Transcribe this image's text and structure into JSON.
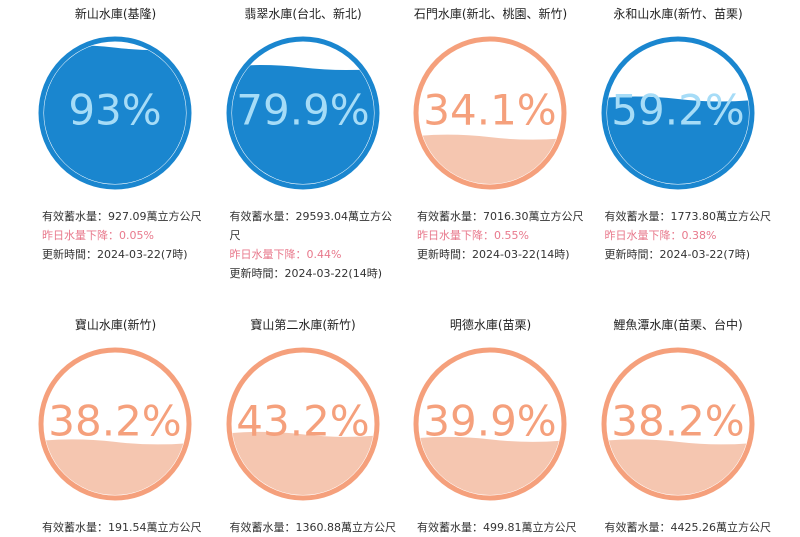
{
  "reservoirs": [
    {
      "name": "新山水庫(基隆)",
      "percent": 93,
      "percent_label": "93%",
      "color": "#1a86cf",
      "fill_color": "#1a86cf",
      "text_color": "#a6dcf7",
      "storage": "有效蓄水量：927.09萬立方公尺",
      "change": "昨日水量下降：0.05%",
      "updated": "更新時間：2024-03-22(7時)"
    },
    {
      "name": "翡翠水庫(台北、新北)",
      "percent": 79.9,
      "percent_label": "79.9%",
      "color": "#1a86cf",
      "fill_color": "#1a86cf",
      "text_color": "#a6dcf7",
      "storage": "有效蓄水量：29593.04萬立方公尺",
      "change": "昨日水量下降：0.44%",
      "updated": "更新時間：2024-03-22(14時)"
    },
    {
      "name": "石門水庫(新北、桃園、新竹)",
      "percent": 34.1,
      "percent_label": "34.1%",
      "color": "#f5a07c",
      "fill_color": "#f5c6b0",
      "text_color": "#f5a07c",
      "storage": "有效蓄水量：7016.30萬立方公尺",
      "change": "昨日水量下降：0.55%",
      "updated": "更新時間：2024-03-22(14時)"
    },
    {
      "name": "永和山水庫(新竹、苗栗)",
      "percent": 59.2,
      "percent_label": "59.2%",
      "color": "#1a86cf",
      "fill_color": "#1a86cf",
      "text_color": "#a6dcf7",
      "storage": "有效蓄水量：1773.80萬立方公尺",
      "change": "昨日水量下降：0.38%",
      "updated": "更新時間：2024-03-22(7時)"
    },
    {
      "name": "寶山水庫(新竹)",
      "percent": 38.2,
      "percent_label": "38.2%",
      "color": "#f5a07c",
      "fill_color": "#f5c6b0",
      "text_color": "#f5a07c",
      "storage": "有效蓄水量：191.54萬立方公尺"
    },
    {
      "name": "寶山第二水庫(新竹)",
      "percent": 43.2,
      "percent_label": "43.2%",
      "color": "#f5a07c",
      "fill_color": "#f5c6b0",
      "text_color": "#f5a07c",
      "storage": "有效蓄水量：1360.88萬立方公尺"
    },
    {
      "name": "明德水庫(苗栗)",
      "percent": 39.9,
      "percent_label": "39.9%",
      "color": "#f5a07c",
      "fill_color": "#f5c6b0",
      "text_color": "#f5a07c",
      "storage": "有效蓄水量：499.81萬立方公尺"
    },
    {
      "name": "鯉魚潭水庫(苗栗、台中)",
      "percent": 38.2,
      "percent_label": "38.2%",
      "color": "#f5a07c",
      "fill_color": "#f5c6b0",
      "text_color": "#f5a07c",
      "storage": "有效蓄水量：4425.26萬立方公尺"
    }
  ]
}
